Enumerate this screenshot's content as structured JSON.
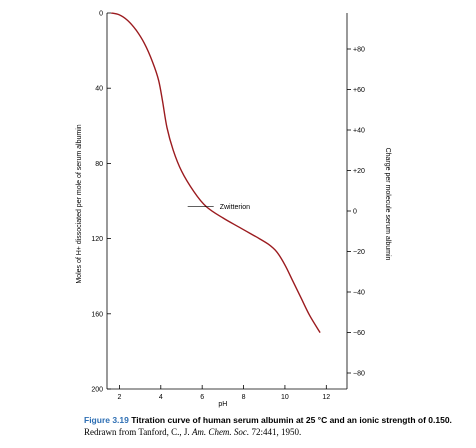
{
  "chart_data": {
    "type": "line",
    "xlabel": "pH",
    "ylabel_left": "Moles of H+ dissociated per mole of serum albumin",
    "ylabel_right": "Charge per molecule serum albumin",
    "x_ticks": [
      2,
      4,
      6,
      8,
      10,
      12
    ],
    "y_left_ticks": [
      0,
      40,
      80,
      120,
      160,
      200
    ],
    "y_right_ticks": [
      80,
      60,
      40,
      20,
      0,
      -20,
      -40,
      -60,
      -80
    ],
    "y_right_tick_labels": [
      "+80",
      "+60",
      "+40",
      "+20",
      "0",
      "−20",
      "−40",
      "−60",
      "−80"
    ],
    "xlim": [
      1.4,
      13.0
    ],
    "ylim_left": [
      0,
      200
    ],
    "annotation": {
      "label": "Zwitterion",
      "x": 5.3,
      "y": 103
    },
    "x": [
      1.6,
      2.0,
      2.4,
      2.8,
      3.2,
      3.6,
      3.9,
      4.1,
      4.3,
      4.6,
      5.0,
      5.6,
      6.2,
      7.0,
      7.8,
      8.6,
      9.2,
      9.6,
      10.0,
      10.4,
      10.8,
      11.2,
      11.7
    ],
    "y": [
      0,
      1,
      4,
      9,
      16,
      26,
      36,
      48,
      61,
      73,
      84,
      95,
      103,
      109,
      114,
      119,
      123,
      127,
      134,
      143,
      152,
      161,
      170
    ]
  },
  "caption": {
    "figure_label": "Figure 3.19",
    "title": "Titration curve of human serum albumin at 25 °C and an ionic strength of 0.150.",
    "source_prefix": "Redrawn from Tanford, C., J. ",
    "source_journal": "Am. Chem. Soc.",
    "source_suffix": " 72:441, 1950."
  },
  "colors": {
    "curve": "#9b1b1f",
    "figure_label": "#2e6fb4",
    "axis": "#000000"
  }
}
